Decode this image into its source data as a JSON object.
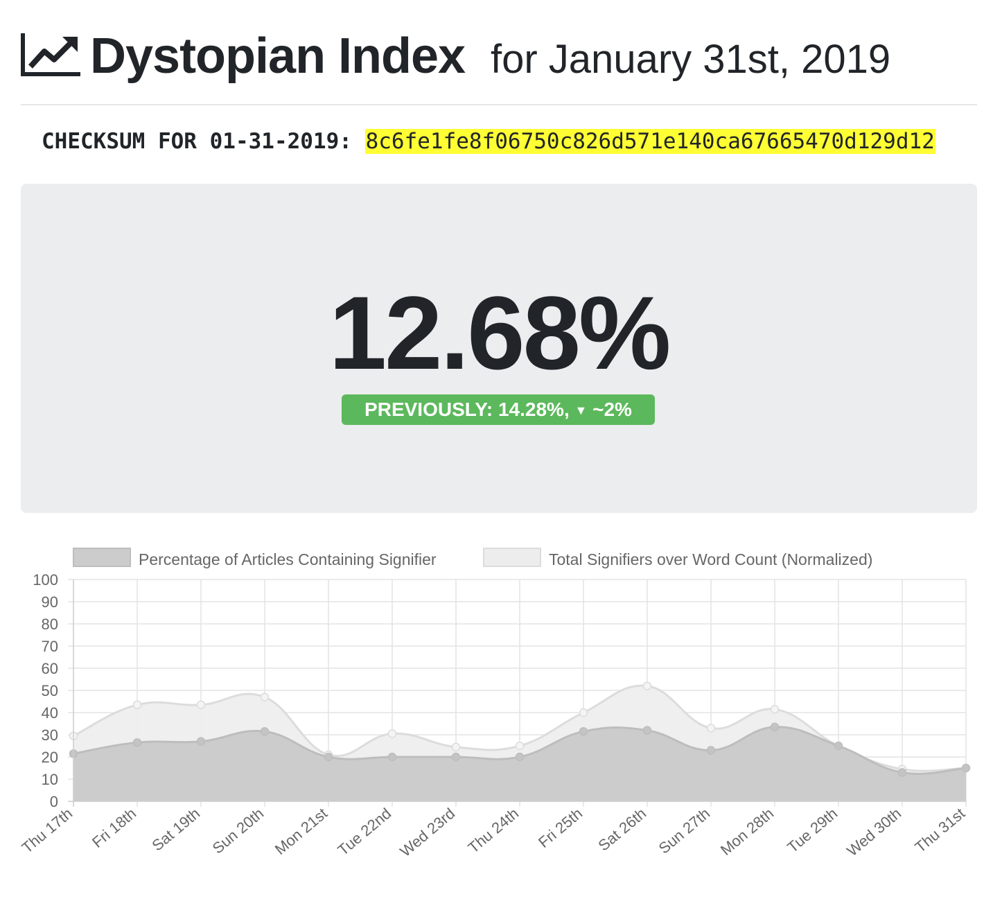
{
  "header": {
    "title": "Dystopian Index",
    "subtitle": "for January 31st, 2019",
    "icon": "chart-line-icon"
  },
  "checksum": {
    "label": "CHECKSUM FOR 01-31-2019:",
    "value": "8c6fe1fe8f06750c826d571e140ca67665470d129d12"
  },
  "index": {
    "value": "12.68%",
    "previous_label": "PREVIOUSLY: 14.28%,",
    "change_icon": "triangle-down-icon",
    "change_glyph": "▼",
    "change_text": "~2%",
    "badge_color": "#5cb85c"
  },
  "chart_data": {
    "type": "area",
    "categories": [
      "Thu 17th",
      "Fri 18th",
      "Sat 19th",
      "Sun 20th",
      "Mon 21st",
      "Tue 22nd",
      "Wed 23rd",
      "Thu 24th",
      "Fri 25th",
      "Sat 26th",
      "Sun 27th",
      "Mon 28th",
      "Tue 29th",
      "Wed 30th",
      "Thu 31st"
    ],
    "series": [
      {
        "name": "Percentage of Articles Containing Signifier",
        "values": [
          21.5,
          26.5,
          27,
          31.5,
          20,
          20,
          20,
          20,
          31.5,
          32,
          23,
          33.5,
          25,
          13,
          15
        ],
        "fill": "#cccccc",
        "stroke": "#bdbdbd"
      },
      {
        "name": "Total Signifiers over Word Count (Normalized)",
        "values": [
          29.5,
          43.5,
          43.5,
          47,
          21,
          30.5,
          24.5,
          25,
          40,
          52,
          33,
          41.5,
          25,
          14.5,
          15
        ],
        "fill": "#ededed",
        "stroke": "#dcdcdc"
      }
    ],
    "ylim": [
      0,
      100
    ],
    "yticks": [
      0,
      10,
      20,
      30,
      40,
      50,
      60,
      70,
      80,
      90,
      100
    ],
    "grid": true,
    "legend": "top"
  }
}
